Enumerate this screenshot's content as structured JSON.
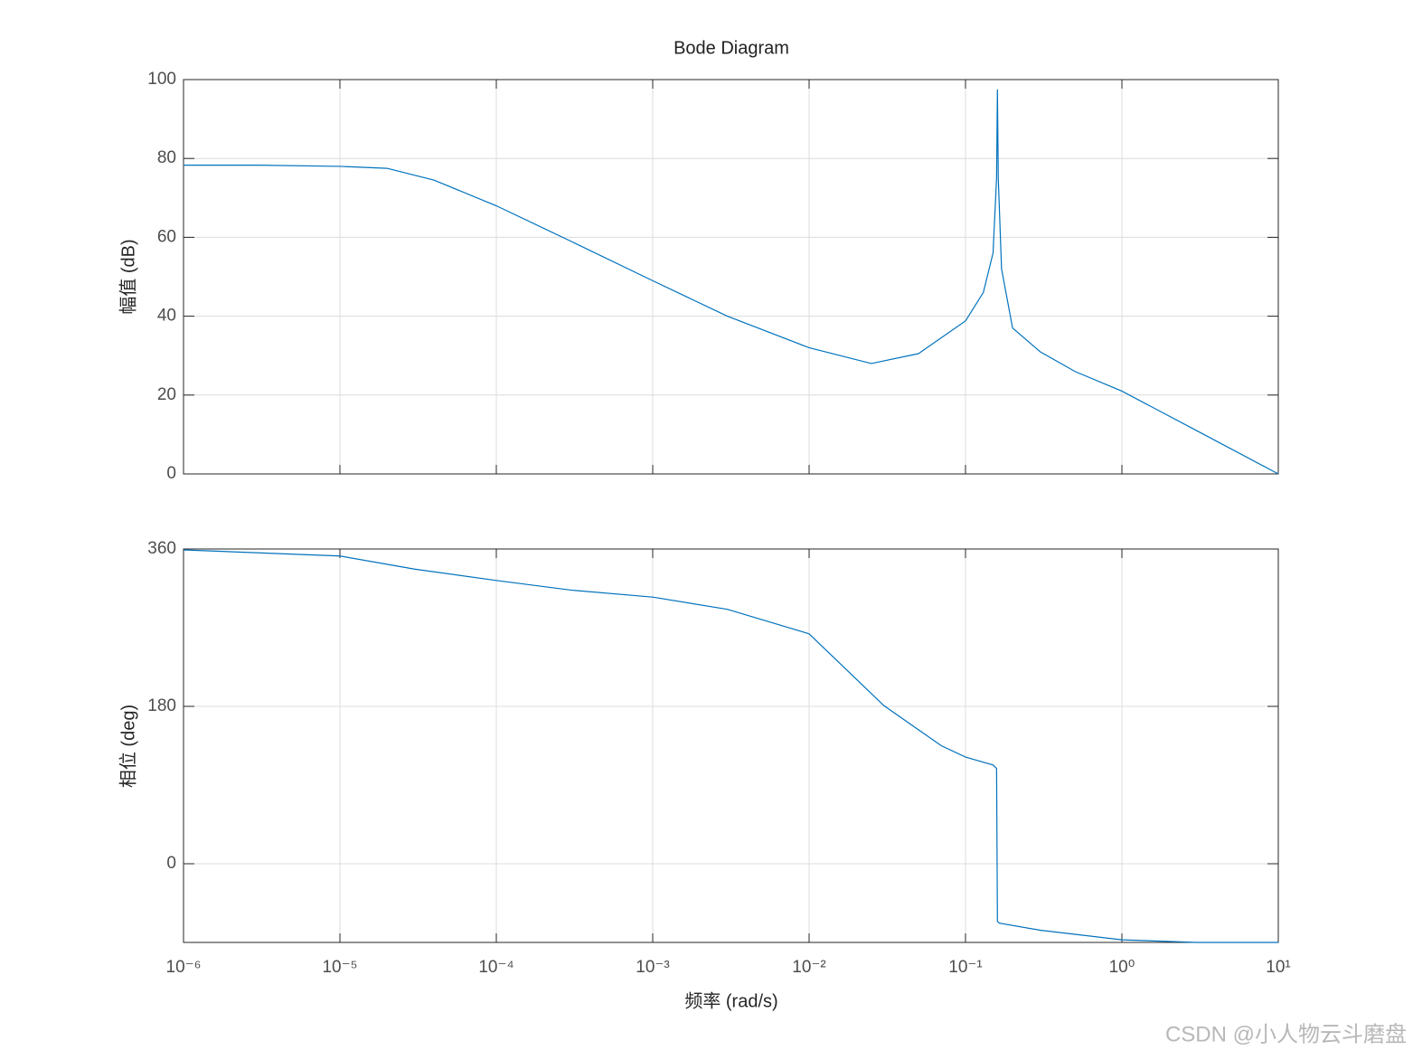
{
  "chart_data": [
    {
      "type": "line",
      "title": "Bode Diagram",
      "ylabel": "幅值 (dB)",
      "xscale": "log",
      "grid": true,
      "color": "#0072bd",
      "x": [
        1e-06,
        3e-06,
        1e-05,
        2e-05,
        4e-05,
        0.0001,
        0.0003,
        0.001,
        0.003,
        0.01,
        0.025,
        0.05,
        0.1,
        0.13,
        0.15,
        0.158,
        0.16,
        0.162,
        0.17,
        0.2,
        0.3,
        0.5,
        1,
        3,
        10
      ],
      "values": [
        78.3,
        78.3,
        78,
        77.5,
        74.5,
        68,
        59,
        49,
        40,
        32,
        28,
        30.5,
        38.8,
        46,
        56,
        75,
        97.5,
        75,
        52,
        37,
        31,
        26,
        21,
        11,
        0
      ],
      "xlim": [
        1e-06,
        10
      ],
      "xticks": [
        1e-06,
        1e-05,
        0.0001,
        0.001,
        0.01,
        0.1,
        1,
        10
      ],
      "ylim": [
        0,
        100
      ],
      "yticks": [
        0,
        20,
        40,
        60,
        80,
        100
      ]
    },
    {
      "type": "line",
      "ylabel": "相位 (deg)",
      "xlabel": "频率 (rad/s)",
      "xscale": "log",
      "grid": true,
      "color": "#0072bd",
      "x": [
        1e-06,
        1e-05,
        3e-05,
        0.0001,
        0.0003,
        0.001,
        0.003,
        0.01,
        0.03,
        0.07,
        0.1,
        0.15,
        0.158,
        0.16,
        0.165,
        0.3,
        1,
        3,
        10
      ],
      "values": [
        359,
        352,
        337,
        324,
        313,
        305,
        291,
        263,
        181,
        135,
        122,
        113,
        109,
        -66,
        -68,
        -76,
        -87,
        -90,
        -90
      ],
      "xlim": [
        1e-06,
        10
      ],
      "xticks": [
        {
          "value": 1e-06,
          "label": "10⁻⁶"
        },
        {
          "value": 1e-05,
          "label": "10⁻⁵"
        },
        {
          "value": 0.0001,
          "label": "10⁻⁴"
        },
        {
          "value": 0.001,
          "label": "10⁻³"
        },
        {
          "value": 0.01,
          "label": "10⁻²"
        },
        {
          "value": 0.1,
          "label": "10⁻¹"
        },
        {
          "value": 1,
          "label": "10⁰"
        },
        {
          "value": 10,
          "label": "10¹"
        }
      ],
      "ylim": [
        -90,
        360
      ],
      "yticks": [
        0,
        180,
        360
      ]
    }
  ],
  "watermark": "CSDN @小人物云斗磨盘"
}
